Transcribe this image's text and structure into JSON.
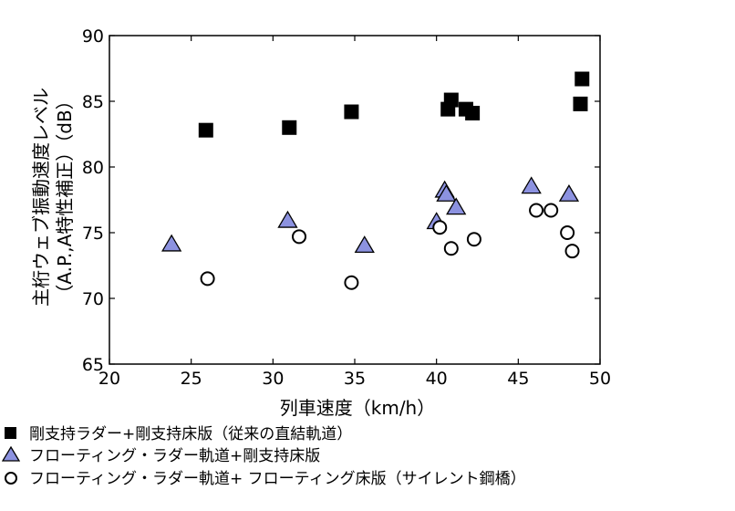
{
  "chart_data": {
    "type": "scatter",
    "title": "",
    "xlabel": "列車速度（km/h）",
    "ylabel_line1": "主桁ウェブ振動速度レベル",
    "ylabel_line2": "（A.P.,A特性補正）（dB）",
    "xlim": [
      20,
      50
    ],
    "ylim": [
      65,
      90
    ],
    "xticks": [
      "20",
      "25",
      "30",
      "35",
      "40",
      "45",
      "50"
    ],
    "yticks": [
      "65",
      "70",
      "75",
      "80",
      "85",
      "90"
    ],
    "grid": false,
    "legend_position": "bottom",
    "series": [
      {
        "name": "剛支持ラダー+剛支持床版（従来の直結軌道）",
        "marker": "square",
        "color": "#000000",
        "points": [
          [
            25.9,
            82.8
          ],
          [
            31.0,
            83.0
          ],
          [
            34.8,
            84.2
          ],
          [
            40.7,
            84.4
          ],
          [
            40.9,
            85.1
          ],
          [
            41.8,
            84.4
          ],
          [
            42.2,
            84.1
          ],
          [
            48.8,
            84.8
          ],
          [
            48.9,
            86.7
          ]
        ]
      },
      {
        "name": "フローティング・ラダー軌道+剛支持床版",
        "marker": "triangle",
        "color": "#8c92e0",
        "points": [
          [
            23.8,
            74.1
          ],
          [
            30.9,
            75.9
          ],
          [
            35.6,
            74.0
          ],
          [
            40.0,
            75.8
          ],
          [
            40.5,
            78.2
          ],
          [
            40.6,
            77.9
          ],
          [
            41.2,
            76.9
          ],
          [
            45.8,
            78.5
          ],
          [
            48.1,
            77.9
          ]
        ]
      },
      {
        "name": "フローティング・ラダー軌道+ フローティング床版（サイレント鋼橋）",
        "marker": "circle",
        "color": "#ffffff",
        "points": [
          [
            26.0,
            71.5
          ],
          [
            31.6,
            74.7
          ],
          [
            34.8,
            71.2
          ],
          [
            40.2,
            75.4
          ],
          [
            40.9,
            73.8
          ],
          [
            42.3,
            74.5
          ],
          [
            46.1,
            76.7
          ],
          [
            47.0,
            76.7
          ],
          [
            48.0,
            75.0
          ],
          [
            48.3,
            73.6
          ]
        ]
      }
    ]
  }
}
